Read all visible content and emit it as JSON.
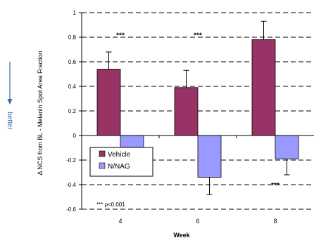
{
  "side_annotation": {
    "label": "better",
    "color": "#3a6ea5",
    "arrow_icon": "down-arrow-icon"
  },
  "chart_data": {
    "type": "bar",
    "categories": [
      "4",
      "6",
      "8"
    ],
    "xlabel": "Week",
    "ylabel": "Δ NCS from BL - Melanin Spot Area Fraction",
    "ylim": [
      -0.6,
      1.0
    ],
    "yticks": [
      -0.6,
      -0.4,
      -0.2,
      0,
      0.2,
      0.4,
      0.6,
      0.8,
      1.0
    ],
    "tick_labels": [
      "-0.6",
      "-0.4",
      "-0.2",
      "0",
      "0.2",
      "0.4",
      "0.6",
      "0.8",
      "1"
    ],
    "grid": true,
    "legend_position": "bottom-left",
    "series": [
      {
        "name": "Vehicle",
        "color": "#993366",
        "values": [
          0.54,
          0.39,
          0.78
        ],
        "error": [
          0.14,
          0.14,
          0.15
        ]
      },
      {
        "name": "N/NAG",
        "color": "#9999ff",
        "values": [
          -0.1,
          -0.34,
          -0.19
        ],
        "error": [
          0.14,
          0.14,
          0.13
        ]
      }
    ],
    "annotations": [
      {
        "text": "***",
        "category": "4",
        "y": 0.82
      },
      {
        "text": "***",
        "category": "6",
        "y": 0.82
      },
      {
        "text": "***",
        "category": "8",
        "y": -0.4
      }
    ],
    "footnote": "*** p<0.001"
  }
}
